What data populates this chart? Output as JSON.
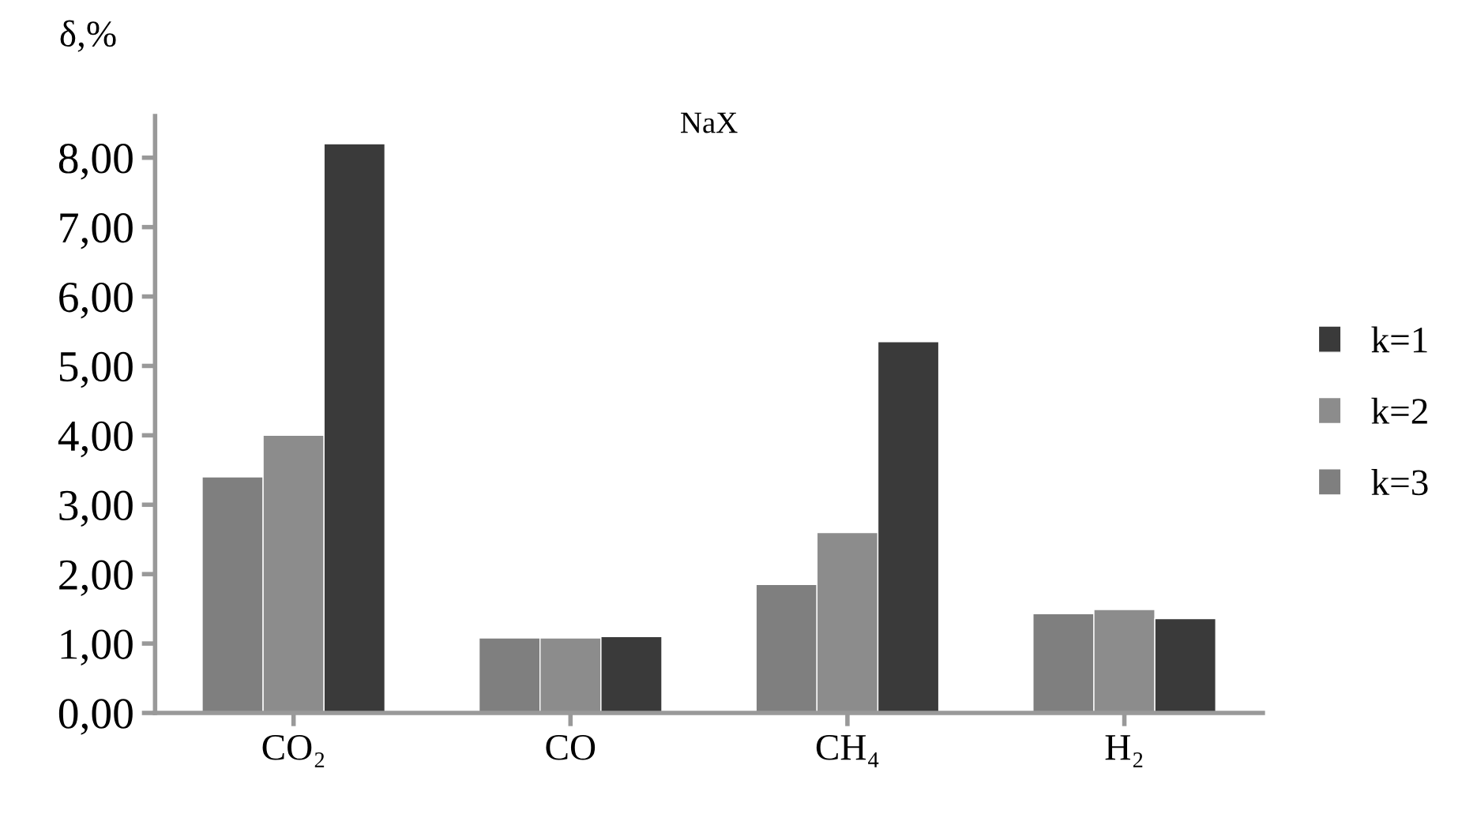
{
  "chart_data": {
    "type": "bar",
    "title": "NaX",
    "ylabel": "δ,%",
    "categories": [
      "CO₂",
      "CO",
      "CH₄",
      "H₂"
    ],
    "series": [
      {
        "name": "k=3",
        "color": "#7f7f7f",
        "values": [
          3.4,
          1.08,
          1.85,
          1.43
        ]
      },
      {
        "name": "k=2",
        "color": "#8c8c8c",
        "values": [
          4.0,
          1.08,
          2.6,
          1.49
        ]
      },
      {
        "name": "k=1",
        "color": "#3a3a3a",
        "values": [
          8.2,
          1.1,
          5.35,
          1.36
        ]
      }
    ],
    "ylim": [
      0,
      8.6
    ],
    "yticks": [
      {
        "value": 0,
        "label": "0,00"
      },
      {
        "value": 1,
        "label": "1,00"
      },
      {
        "value": 2,
        "label": "2,00"
      },
      {
        "value": 3,
        "label": "3,00"
      },
      {
        "value": 4,
        "label": "4,00"
      },
      {
        "value": 5,
        "label": "5,00"
      },
      {
        "value": 6,
        "label": "6,00"
      },
      {
        "value": 7,
        "label": "7,00"
      },
      {
        "value": 8,
        "label": "8,00"
      }
    ],
    "grid": false,
    "legend": "right"
  }
}
